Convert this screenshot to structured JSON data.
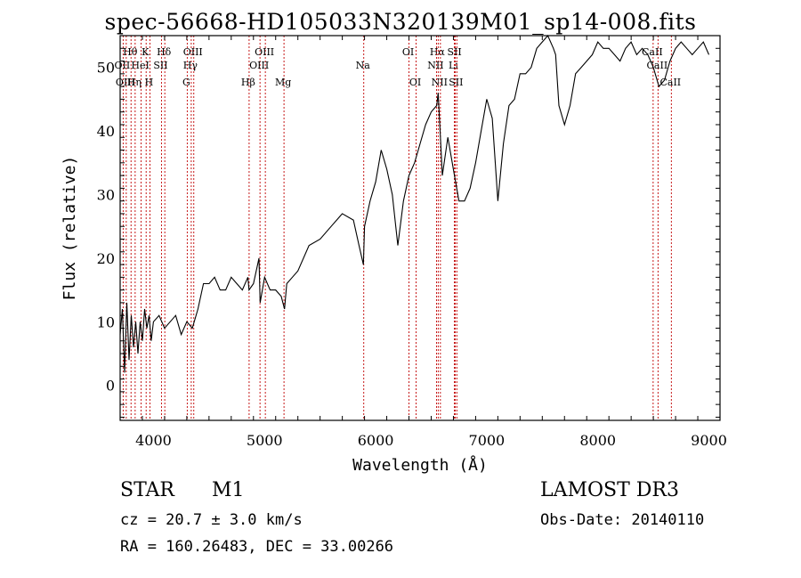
{
  "title": "spec-56668-HD105033N320139M01_sp14-008.fits",
  "chart_data": {
    "type": "line",
    "title": "spec-56668-HD105033N320139M01_sp14-008.fits",
    "xlabel": "Wavelength (Å)",
    "ylabel": "Flux (relative)",
    "xlim": [
      3700,
      9100
    ],
    "ylim": [
      -5.5,
      55
    ],
    "xticks": [
      4000,
      5000,
      6000,
      7000,
      8000,
      9000
    ],
    "yticks": [
      0,
      10,
      20,
      30,
      40,
      50
    ],
    "series": [
      {
        "name": "flux",
        "x": [
          3700,
          3720,
          3740,
          3760,
          3780,
          3800,
          3820,
          3840,
          3860,
          3880,
          3900,
          3920,
          3940,
          3960,
          3980,
          4000,
          4050,
          4100,
          4150,
          4200,
          4250,
          4300,
          4350,
          4400,
          4450,
          4500,
          4550,
          4600,
          4650,
          4700,
          4750,
          4800,
          4850,
          4860,
          4900,
          4950,
          4960,
          5000,
          5050,
          5100,
          5150,
          5180,
          5200,
          5250,
          5300,
          5400,
          5500,
          5600,
          5700,
          5800,
          5850,
          5890,
          5900,
          5950,
          6000,
          6050,
          6100,
          6150,
          6200,
          6250,
          6300,
          6350,
          6400,
          6450,
          6500,
          6550,
          6563,
          6580,
          6600,
          6650,
          6700,
          6750,
          6800,
          6850,
          6900,
          6950,
          7000,
          7050,
          7100,
          7150,
          7200,
          7250,
          7300,
          7350,
          7400,
          7450,
          7500,
          7550,
          7600,
          7620,
          7650,
          7700,
          7750,
          7800,
          7850,
          7900,
          7950,
          8000,
          8050,
          8100,
          8150,
          8200,
          8250,
          8300,
          8350,
          8400,
          8450,
          8500,
          8550,
          8600,
          8650,
          8700,
          8750,
          8800,
          8850,
          8900,
          8950,
          9000
        ],
        "values": [
          8,
          12,
          2,
          13,
          4,
          11,
          6,
          10,
          5,
          10,
          7,
          12,
          9,
          11,
          7,
          10,
          11,
          9,
          10,
          11,
          8,
          10,
          9,
          12,
          16,
          16,
          17,
          15,
          15,
          17,
          16,
          15,
          17,
          15,
          16,
          20,
          13,
          17,
          15,
          15,
          14,
          12,
          16,
          17,
          18,
          22,
          23,
          25,
          27,
          26,
          22,
          19,
          25,
          29,
          32,
          37,
          34,
          30,
          22,
          29,
          33,
          35,
          38,
          41,
          43,
          44,
          46,
          40,
          33,
          39,
          34,
          29,
          29,
          31,
          35,
          40,
          45,
          42,
          29,
          38,
          44,
          45,
          49,
          49,
          50,
          53,
          54,
          55,
          53,
          52,
          44,
          41,
          44,
          49,
          50,
          51,
          52,
          54,
          53,
          53,
          52,
          51,
          53,
          54,
          52,
          53,
          52,
          50,
          47,
          48,
          51,
          53,
          54,
          53,
          52,
          53,
          54,
          52
        ]
      }
    ],
    "lines": [
      {
        "label": "Hθ",
        "wl": 3798,
        "row": 0
      },
      {
        "label": "K",
        "wl": 3934,
        "row": 0
      },
      {
        "label": "Hδ",
        "wl": 4102,
        "row": 0
      },
      {
        "label": "OIII",
        "wl": 4363,
        "row": 0
      },
      {
        "label": "OIII",
        "wl": 5007,
        "row": 0
      },
      {
        "label": "OI",
        "wl": 6300,
        "row": 0
      },
      {
        "label": "Hα",
        "wl": 6563,
        "row": 0
      },
      {
        "label": "SII",
        "wl": 6717,
        "row": 0
      },
      {
        "label": "CaII",
        "wl": 8498,
        "row": 0
      },
      {
        "label": "OII",
        "wl": 3727,
        "row": 1
      },
      {
        "label": "HeI",
        "wl": 3889,
        "row": 1
      },
      {
        "label": "SII",
        "wl": 4072,
        "row": 1
      },
      {
        "label": "Hγ",
        "wl": 4340,
        "row": 1
      },
      {
        "label": "OIII",
        "wl": 4959,
        "row": 1
      },
      {
        "label": "Na",
        "wl": 5893,
        "row": 1
      },
      {
        "label": "NII",
        "wl": 6548,
        "row": 1
      },
      {
        "label": "Li",
        "wl": 6708,
        "row": 1
      },
      {
        "label": "CaII",
        "wl": 8542,
        "row": 1
      },
      {
        "label": "OIII",
        "wl": 3755,
        "row": 2
      },
      {
        "label": "Hη",
        "wl": 3835,
        "row": 2
      },
      {
        "label": "H",
        "wl": 3968,
        "row": 2
      },
      {
        "label": "G",
        "wl": 4304,
        "row": 2
      },
      {
        "label": "Hβ",
        "wl": 4861,
        "row": 2
      },
      {
        "label": "Mg",
        "wl": 5175,
        "row": 2
      },
      {
        "label": "OI",
        "wl": 6364,
        "row": 2
      },
      {
        "label": "NII",
        "wl": 6583,
        "row": 2
      },
      {
        "label": "SII",
        "wl": 6731,
        "row": 2
      },
      {
        "label": "CaII",
        "wl": 8662,
        "row": 2
      }
    ]
  },
  "info": {
    "class": "STAR",
    "subclass": "M1",
    "survey": "LAMOST DR3",
    "cz": "cz = 20.7 ± 3.0 km/s",
    "obs_date": "Obs-Date: 20140110",
    "radec": "RA = 160.26483, DEC =  33.00266"
  }
}
